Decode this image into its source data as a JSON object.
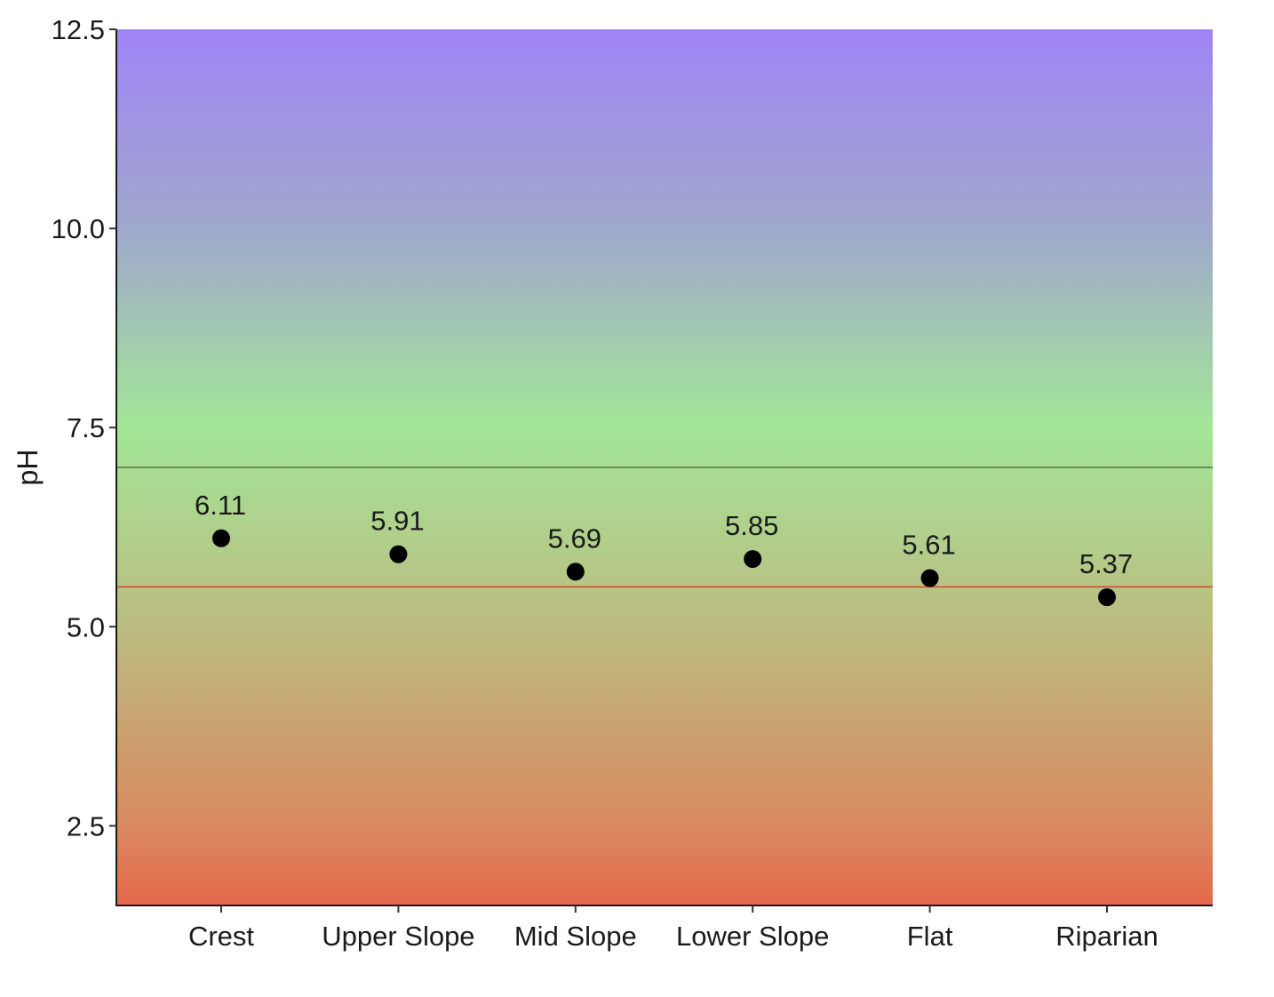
{
  "chart_data": {
    "type": "scatter",
    "categories": [
      "Crest",
      "Upper Slope",
      "Mid Slope",
      "Lower Slope",
      "Flat",
      "Riparian"
    ],
    "values": [
      6.11,
      5.91,
      5.69,
      5.85,
      5.61,
      5.37
    ],
    "data_labels": [
      "6.11",
      "5.91",
      "5.69",
      "5.85",
      "5.61",
      "5.37"
    ],
    "ylabel": "pH",
    "ylim": [
      1.5,
      12.5
    ],
    "yticks": [
      2.5,
      5.0,
      7.5,
      10.0,
      12.5
    ],
    "ytick_labels": [
      "2.5",
      "5.0",
      "7.5",
      "10.0",
      "12.5"
    ],
    "reference_lines": [
      {
        "value": 7.0,
        "color": "#4a7a4a"
      },
      {
        "value": 5.5,
        "color": "#d24b2f"
      }
    ],
    "background_gradient": [
      {
        "value": 12.5,
        "color": "#a084f6"
      },
      {
        "value": 10.0,
        "color": "#a0a8cc"
      },
      {
        "value": 7.5,
        "color": "#a2e698"
      },
      {
        "value": 5.0,
        "color": "#bcbc80"
      },
      {
        "value": 2.5,
        "color": "#d98960"
      },
      {
        "value": 1.5,
        "color": "#e6684c"
      }
    ],
    "point_color": "#000000",
    "grid": false
  }
}
